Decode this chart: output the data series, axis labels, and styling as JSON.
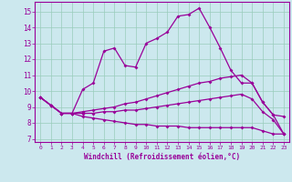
{
  "xlabel": "Windchill (Refroidissement éolien,°C)",
  "background_color": "#cce8ee",
  "grid_color": "#99ccbb",
  "line_color": "#990099",
  "x_ticks": [
    0,
    1,
    2,
    3,
    4,
    5,
    6,
    7,
    8,
    9,
    10,
    11,
    12,
    13,
    14,
    15,
    16,
    17,
    18,
    19,
    20,
    21,
    22,
    23
  ],
  "ylim": [
    6.8,
    15.6
  ],
  "yticks": [
    7,
    8,
    9,
    10,
    11,
    12,
    13,
    14,
    15
  ],
  "lines": [
    [
      9.6,
      9.1,
      8.6,
      8.6,
      10.1,
      10.5,
      12.5,
      12.7,
      11.6,
      11.5,
      13.0,
      13.3,
      13.7,
      14.7,
      14.8,
      15.2,
      14.0,
      12.7,
      11.3,
      10.5,
      10.5,
      9.3,
      8.5,
      8.4
    ],
    [
      9.6,
      9.1,
      8.6,
      8.6,
      8.7,
      8.8,
      8.9,
      9.0,
      9.2,
      9.3,
      9.5,
      9.7,
      9.9,
      10.1,
      10.3,
      10.5,
      10.6,
      10.8,
      10.9,
      11.0,
      10.5,
      9.3,
      8.5,
      7.3
    ],
    [
      9.6,
      9.1,
      8.6,
      8.6,
      8.6,
      8.6,
      8.7,
      8.7,
      8.8,
      8.8,
      8.9,
      9.0,
      9.1,
      9.2,
      9.3,
      9.4,
      9.5,
      9.6,
      9.7,
      9.8,
      9.5,
      8.7,
      8.2,
      7.3
    ],
    [
      9.6,
      9.1,
      8.6,
      8.6,
      8.4,
      8.3,
      8.2,
      8.1,
      8.0,
      7.9,
      7.9,
      7.8,
      7.8,
      7.8,
      7.7,
      7.7,
      7.7,
      7.7,
      7.7,
      7.7,
      7.7,
      7.5,
      7.3,
      7.3
    ]
  ]
}
